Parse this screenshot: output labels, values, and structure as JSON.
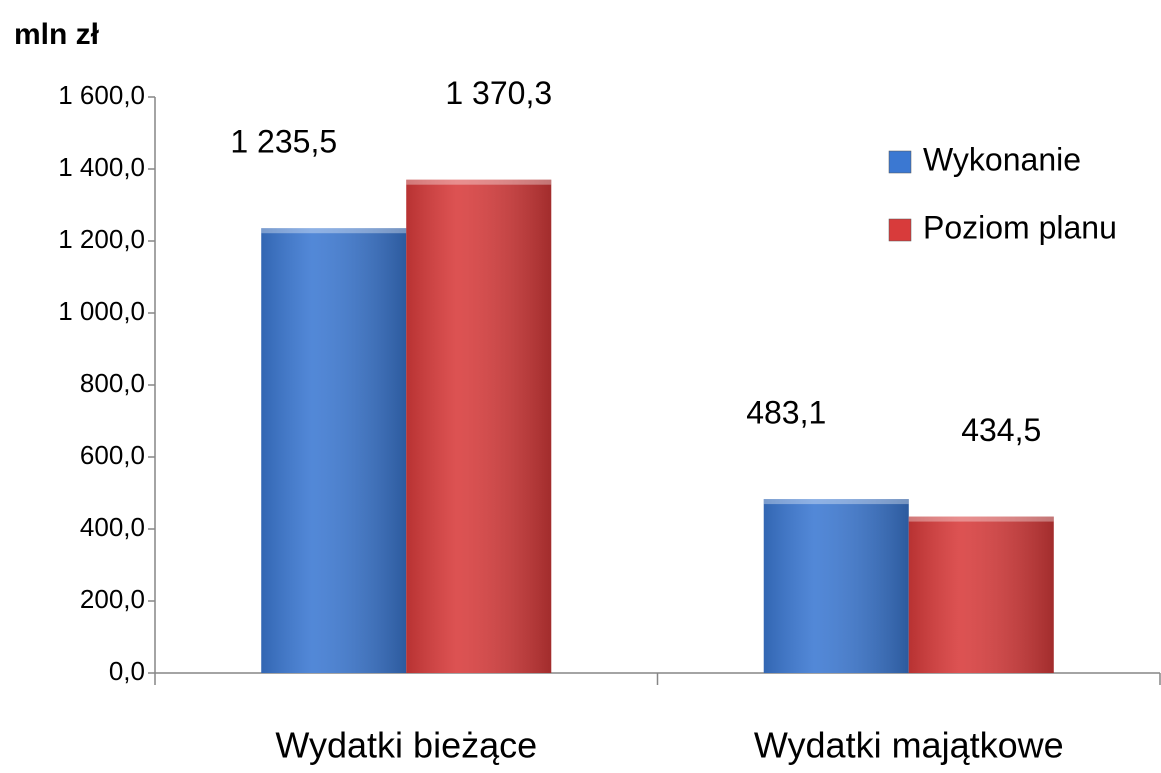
{
  "chart_data": {
    "type": "bar",
    "y_label": "mln zł",
    "categories": [
      "Wydatki bieżące",
      "Wydatki majątkowe"
    ],
    "series": [
      {
        "name": "Wykonanie",
        "color": "#3b78d2",
        "values": [
          1235.5,
          483.1
        ],
        "value_labels": [
          "1 235,5",
          "483,1"
        ]
      },
      {
        "name": "Poziom planu",
        "color": "#d83b3b",
        "values": [
          1370.3,
          434.5
        ],
        "value_labels": [
          "1 370,3",
          "434,5"
        ]
      }
    ],
    "ylim": [
      0,
      1600
    ],
    "yticks": [
      {
        "value": 0,
        "label": "0,0"
      },
      {
        "value": 200,
        "label": "200,0"
      },
      {
        "value": 400,
        "label": "400,0"
      },
      {
        "value": 600,
        "label": "600,0"
      },
      {
        "value": 800,
        "label": "800,0"
      },
      {
        "value": 1000,
        "label": "1 000,0"
      },
      {
        "value": 1200,
        "label": "1 200,0"
      },
      {
        "value": 1400,
        "label": "1 400,0"
      },
      {
        "value": 1600,
        "label": "1 600,0"
      }
    ],
    "legend": "right"
  }
}
